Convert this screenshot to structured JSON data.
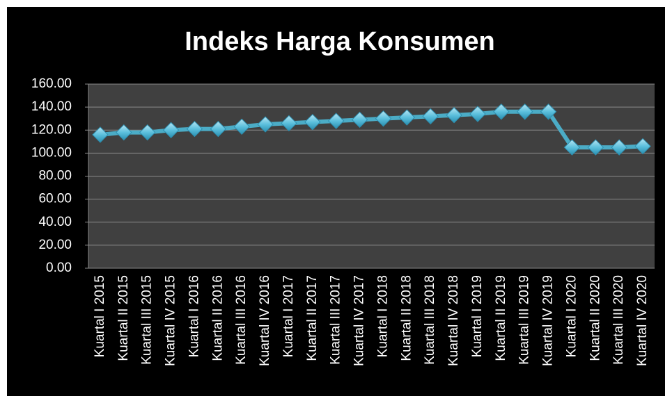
{
  "chart_data": {
    "type": "line",
    "title": "Indeks Harga Konsumen",
    "categories": [
      "Kuartal I 2015",
      "Kuartal II 2015",
      "Kuartal III 2015",
      "Kuartal IV 2015",
      "Kuartal I 2016",
      "Kuartal II 2016",
      "Kuartal III 2016",
      "Kuartal IV 2016",
      "Kuartal I 2017",
      "Kuartal II 2017",
      "Kuartal III 2017",
      "Kuartal IV 2017",
      "Kuartal I 2018",
      "Kuartal II 2018",
      "Kuartal III 2018",
      "Kuartal IV 2018",
      "Kuartal I 2019",
      "Kuartal II 2019",
      "Kuartal III 2019",
      "Kuartal IV 2019",
      "Kuartal I 2020",
      "Kuartal II 2020",
      "Kuartal III 2020",
      "Kuartal IV 2020"
    ],
    "values": [
      116,
      118,
      118,
      120,
      121,
      121,
      123,
      125,
      126,
      127,
      128,
      129,
      130,
      131,
      132,
      133,
      134,
      136,
      136,
      136,
      105,
      105,
      105,
      106
    ],
    "color": "#4bacc6",
    "ylim": [
      0,
      160
    ],
    "yticks": [
      {
        "value": 0,
        "label": "0.00"
      },
      {
        "value": 20,
        "label": "20.00"
      },
      {
        "value": 40,
        "label": "40.00"
      },
      {
        "value": 60,
        "label": "60.00"
      },
      {
        "value": 80,
        "label": "80.00"
      },
      {
        "value": 100,
        "label": "100.00"
      },
      {
        "value": 120,
        "label": "120.00"
      },
      {
        "value": 140,
        "label": "140.00"
      },
      {
        "value": 160,
        "label": "160.00"
      }
    ],
    "grid": true
  }
}
